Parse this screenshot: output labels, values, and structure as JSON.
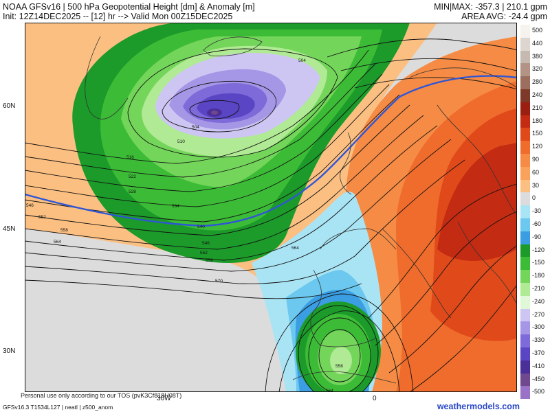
{
  "header": {
    "line1": "NOAA GFSv16 | 500 hPa Geopotential Height [dm] & Anomaly [m]",
    "line2": "Init: 12Z14DEC2025 -- [12] hr --> Valid Mon 00Z15DEC2025",
    "minmax": "MIN|MAX: -357.3 | 210.1 gpm",
    "area_avg": "AREA AVG: -24.4 gpm"
  },
  "axes": {
    "lat_labels": [
      "60N",
      "45N",
      "30N"
    ],
    "lon_labels": [
      "30W",
      "0"
    ]
  },
  "colorbar": {
    "labels": [
      "500",
      "440",
      "380",
      "320",
      "280",
      "240",
      "210",
      "180",
      "150",
      "120",
      "90",
      "60",
      "30",
      "0",
      "-30",
      "-60",
      "-90",
      "-120",
      "-150",
      "-180",
      "-210",
      "-240",
      "-270",
      "-300",
      "-330",
      "-370",
      "-410",
      "-450",
      "-500"
    ],
    "colors": [
      "#f6f2ee",
      "#ddd6d0",
      "#c6b9b0",
      "#b29385",
      "#9c6e5e",
      "#7e3a28",
      "#9b1f10",
      "#c32b12",
      "#e04a1a",
      "#ef6c2c",
      "#f58b44",
      "#f9a25c",
      "#fbbf82",
      "#dcdcdc",
      "#a9e4f4",
      "#6cc8ee",
      "#3b9ee2",
      "#1c9a2a",
      "#3cbc36",
      "#73d55a",
      "#b0ea94",
      "#e0f7d8",
      "#cdc6f2",
      "#a596e6",
      "#7e6ad8",
      "#5a46c4",
      "#4a2f98",
      "#70488e",
      "#9a72c8"
    ]
  },
  "contour_labels": [
    "504",
    "510",
    "516",
    "522",
    "528",
    "534",
    "540",
    "546",
    "552",
    "558",
    "564",
    "570",
    "546",
    "552",
    "558",
    "564",
    "504",
    "558",
    "564"
  ],
  "tos": "Personal use only according to our TOS (pvK3Cf818H08T)",
  "footer": "GFSv16.3 T1534L127 | neatl | z500_anom",
  "brand": "weathermodels.com"
}
